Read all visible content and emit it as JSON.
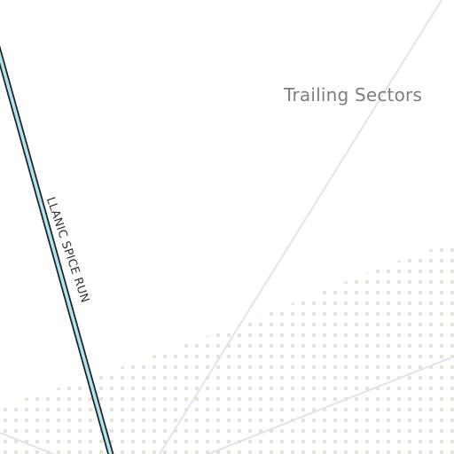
{
  "map": {
    "region_label": "Trailing Sectors",
    "route_label": "LLANIC SPICE RUN",
    "colors": {
      "background": "#ffffff",
      "hyperlane": "#e3e3e3",
      "route_fill": "#aee4f2",
      "route_outline": "#222222",
      "dot_pattern": "#e5e3d8",
      "region_label": "#7e7e7e",
      "route_label": "#333333"
    }
  }
}
